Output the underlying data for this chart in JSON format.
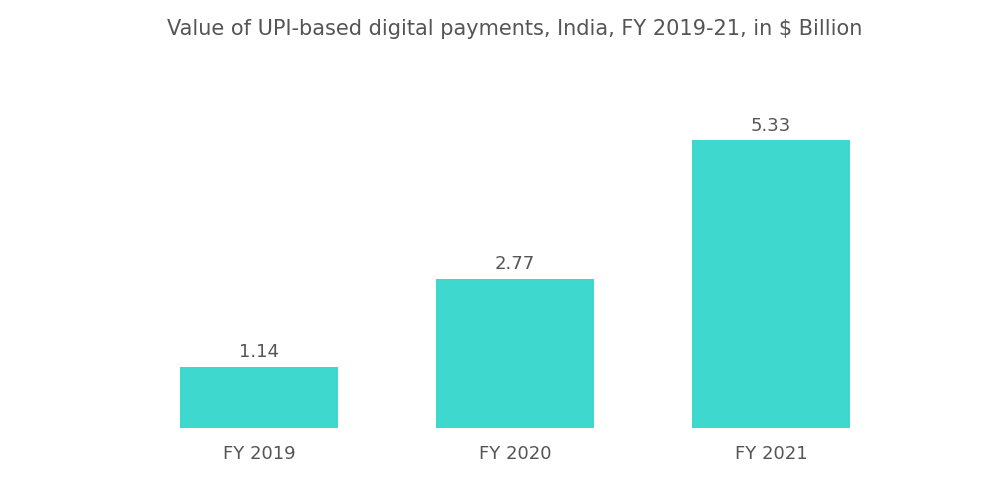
{
  "title": "Value of UPI-based digital payments, India, FY 2019-21, in $ Billion",
  "categories": [
    "FY 2019",
    "FY 2020",
    "FY 2021"
  ],
  "values": [
    1.14,
    2.77,
    5.33
  ],
  "bar_color": "#3ED8CE",
  "background_color": "#ffffff",
  "title_fontsize": 15,
  "value_fontsize": 13,
  "tick_fontsize": 13,
  "ylim": [
    0,
    6.8
  ],
  "bar_width": 0.62
}
